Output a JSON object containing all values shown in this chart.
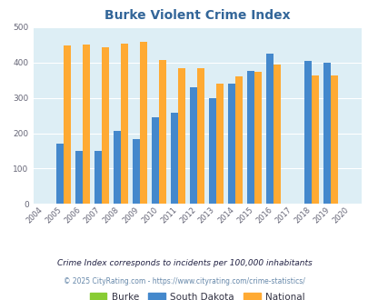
{
  "title": "Burke Violent Crime Index",
  "title_color": "#336699",
  "years": [
    2004,
    2005,
    2006,
    2007,
    2008,
    2009,
    2010,
    2011,
    2012,
    2013,
    2014,
    2015,
    2016,
    2017,
    2018,
    2019,
    2020
  ],
  "burke": [
    0,
    0,
    0,
    0,
    0,
    0,
    0,
    0,
    0,
    0,
    0,
    0,
    0,
    0,
    0,
    0,
    0
  ],
  "south_dakota": [
    0,
    170,
    150,
    150,
    207,
    183,
    245,
    258,
    330,
    300,
    340,
    375,
    425,
    0,
    405,
    398,
    0
  ],
  "national": [
    0,
    447,
    451,
    444,
    452,
    457,
    407,
    384,
    383,
    340,
    360,
    373,
    395,
    0,
    362,
    363,
    0
  ],
  "burke_color": "#88cc33",
  "sd_color": "#4488cc",
  "national_color": "#ffaa33",
  "bg_color": "#ddeef5",
  "ylim": [
    0,
    500
  ],
  "yticks": [
    0,
    100,
    200,
    300,
    400,
    500
  ],
  "footnote1": "Crime Index corresponds to incidents per 100,000 inhabitants",
  "footnote2": "© 2025 CityRating.com - https://www.cityrating.com/crime-statistics/",
  "legend_labels": [
    "Burke",
    "South Dakota",
    "National"
  ],
  "bar_width": 0.38
}
